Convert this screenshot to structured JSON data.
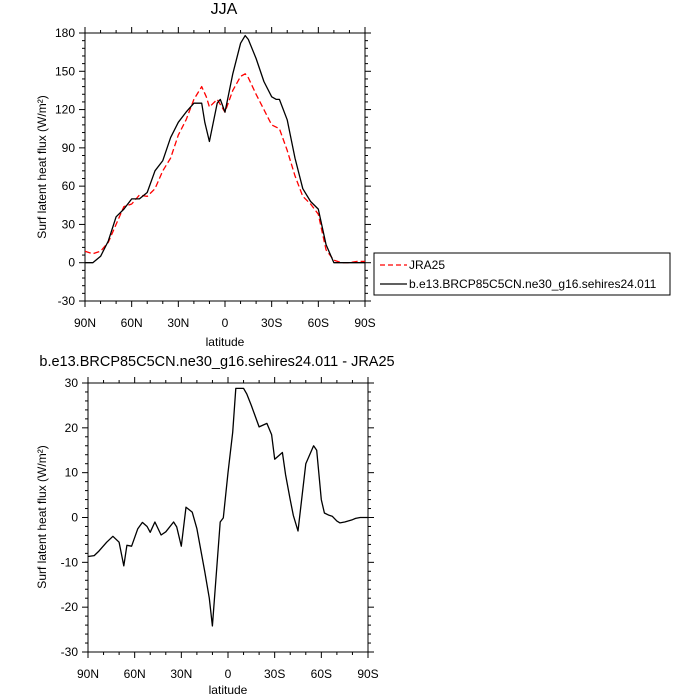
{
  "chart_data": [
    {
      "type": "line",
      "title": "JJA",
      "xlabel": "latitude",
      "ylabel": "Surf latent heat flux (W/m²)",
      "ylim": [
        -30,
        180
      ],
      "yticks": [
        -30,
        0,
        30,
        60,
        90,
        120,
        150,
        180
      ],
      "xlim": [
        90,
        -90
      ],
      "xticks": [
        90,
        60,
        30,
        0,
        -30,
        -60,
        -90
      ],
      "xtick_labels": [
        "90N",
        "60N",
        "30N",
        "0",
        "30S",
        "60S",
        "90S"
      ],
      "legend_position": "right",
      "series": [
        {
          "name": "JRA25",
          "color": "#ff0000",
          "dash": true,
          "x": [
            90,
            85,
            80,
            75,
            70,
            65,
            60,
            55,
            50,
            45,
            40,
            35,
            30,
            25,
            20,
            15,
            12,
            10,
            5,
            0,
            -5,
            -10,
            -13,
            -15,
            -20,
            -25,
            -30,
            -35,
            -40,
            -45,
            -50,
            -55,
            -60,
            -65,
            -70,
            -75,
            -80,
            -85,
            -90
          ],
          "values": [
            9,
            7,
            9,
            16,
            30,
            44,
            46,
            53,
            52,
            58,
            72,
            82,
            100,
            112,
            128,
            138,
            130,
            122,
            128,
            118,
            135,
            146,
            148,
            145,
            132,
            120,
            108,
            105,
            88,
            68,
            52,
            46,
            38,
            10,
            2,
            0,
            0,
            1,
            1
          ]
        },
        {
          "name": "b.e13.BRCP85C5CN.ne30_g16.sehires24.011",
          "color": "#000000",
          "dash": false,
          "x": [
            90,
            85,
            80,
            75,
            70,
            65,
            60,
            55,
            50,
            45,
            40,
            35,
            30,
            25,
            20,
            15,
            13,
            10,
            5,
            3,
            0,
            -5,
            -10,
            -13,
            -15,
            -20,
            -25,
            -30,
            -33,
            -35,
            -40,
            -45,
            -50,
            -55,
            -60,
            -65,
            -70,
            -75,
            -80,
            -85,
            -90
          ],
          "values": [
            0,
            0,
            5,
            17,
            36,
            42,
            50,
            50,
            55,
            72,
            80,
            98,
            110,
            118,
            125,
            125,
            110,
            95,
            125,
            128,
            118,
            148,
            172,
            178,
            175,
            160,
            142,
            130,
            128,
            128,
            112,
            82,
            58,
            48,
            42,
            14,
            0,
            0,
            0,
            0,
            0
          ]
        }
      ]
    },
    {
      "type": "line",
      "title": "b.e13.BRCP85C5CN.ne30_g16.sehires24.011 - JRA25",
      "xlabel": "latitude",
      "ylabel": "Surf latent heat flux (W/m²)",
      "ylim": [
        -30,
        30
      ],
      "yticks": [
        -30,
        -20,
        -10,
        0,
        10,
        20,
        30
      ],
      "xlim": [
        90,
        -90
      ],
      "xticks": [
        90,
        60,
        30,
        0,
        -30,
        -60,
        -90
      ],
      "xtick_labels": [
        "90N",
        "60N",
        "30N",
        "0",
        "30S",
        "60S",
        "90S"
      ],
      "series": [
        {
          "color": "#000000",
          "x": [
            90,
            86,
            83,
            78,
            74,
            70,
            67,
            65,
            62,
            58,
            55,
            52,
            50,
            47,
            43,
            40,
            35,
            33,
            30,
            27,
            23,
            20,
            15,
            12,
            10,
            5,
            3,
            0,
            -3,
            -5,
            -10,
            -12,
            -15,
            -20,
            -25,
            -28,
            -30,
            -35,
            -37,
            -40,
            -42,
            -45,
            -50,
            -55,
            -57,
            -60,
            -62,
            -65,
            -67,
            -70,
            -72,
            -75,
            -80,
            -82,
            -85,
            -88,
            -90
          ],
          "values": [
            -8.7,
            -8.5,
            -7.5,
            -5.5,
            -4.2,
            -5.5,
            -10.8,
            -6.2,
            -6.4,
            -2.5,
            -1.1,
            -2.0,
            -3.3,
            -1.0,
            -3.9,
            -3.2,
            -1.0,
            -2.1,
            -6.4,
            2.3,
            1.2,
            -2.5,
            -12.0,
            -18.0,
            -24.2,
            -1.0,
            -0.1,
            10.0,
            19.0,
            28.8,
            28.8,
            27.6,
            25.0,
            20.2,
            21.0,
            18.5,
            13.0,
            14.5,
            9.5,
            4.0,
            0.5,
            -3.0,
            12.0,
            16.0,
            15.0,
            4.0,
            1.0,
            0.5,
            0.3,
            -0.8,
            -1.2,
            -1.0,
            -0.5,
            -0.2,
            0,
            0,
            0
          ]
        }
      ]
    }
  ]
}
